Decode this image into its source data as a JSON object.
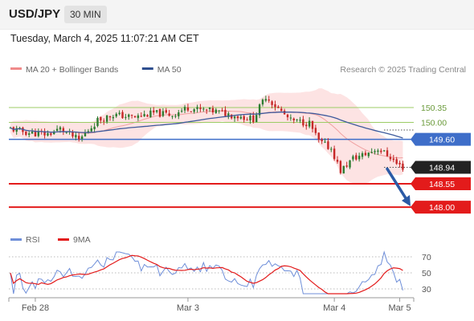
{
  "header": {
    "symbol": "USD/JPY",
    "timeframe": "30 MIN"
  },
  "timestamp": "Tuesday, March 4, 2025 11:07:21 AM CET",
  "colors": {
    "candle_up": "#2e7d32",
    "candle_down": "#c62828",
    "bollinger_fill": "#fddede",
    "ma20": "#f0a0a0",
    "ma50": "#3d5a9c",
    "pivot_line": "#3e6ec9",
    "support": "#e31b1b",
    "target_green": "#9ccc65",
    "arrow": "#2b5aa6",
    "rsi": "#6f8fd9",
    "rsi_ma": "#e31b1b",
    "current": "#222222"
  },
  "chart_data": [
    {
      "type": "candlestick",
      "legend": [
        {
          "label": "MA 20 + Bollinger Bands",
          "color": "#f08a8a"
        },
        {
          "label": "MA 50",
          "color": "#2f4f8f"
        }
      ],
      "credit": "Research © 2025 Trading Central",
      "ylim": [
        147.85,
        150.9
      ],
      "x_ticks": [
        {
          "label": "Feb 28",
          "index": 8
        },
        {
          "label": "Mar 3",
          "index": 57
        },
        {
          "label": "Mar 4",
          "index": 104
        },
        {
          "label": "Mar 5",
          "index": 125
        }
      ],
      "levels": [
        {
          "value": 150.35,
          "label": "150.35",
          "kind": "target"
        },
        {
          "value": 150.0,
          "label": "150.00",
          "kind": "target"
        },
        {
          "value": 149.6,
          "label": "149.60",
          "kind": "pivot"
        },
        {
          "value": 148.94,
          "label": "148.94",
          "kind": "current"
        },
        {
          "value": 148.55,
          "label": "148.55",
          "kind": "support"
        },
        {
          "value": 148.0,
          "label": "148.00",
          "kind": "support"
        }
      ],
      "arrow": {
        "from_value": 148.94,
        "to_value": 148.02
      }
    },
    {
      "type": "line",
      "legend": [
        {
          "label": "RSI",
          "color": "#6f8fd9"
        },
        {
          "label": "9MA",
          "color": "#e31b1b"
        }
      ],
      "levels": [
        70,
        50,
        30
      ],
      "ylim": [
        22,
        78
      ]
    }
  ]
}
